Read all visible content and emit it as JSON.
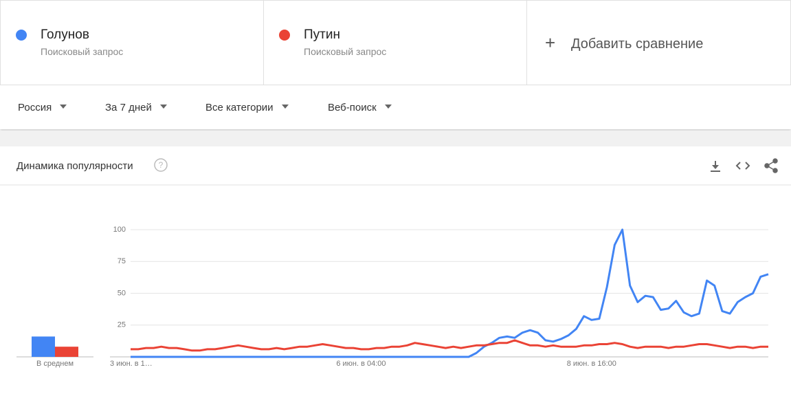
{
  "header": {
    "subtitles": [
      "Поисковый запрос",
      "Поисковый запрос"
    ],
    "add_compare": "Добавить сравнение"
  },
  "filters": [
    "Россия",
    "За 7 дней",
    "Все категории",
    "Веб-поиск"
  ],
  "card_title": "Динамика популярности",
  "chart_data": {
    "type": "line",
    "categories": [
      "3 июн. в 1…",
      null,
      null,
      null,
      null,
      null,
      null,
      null,
      null,
      null,
      null,
      null,
      null,
      null,
      null,
      null,
      null,
      null,
      null,
      null,
      null,
      null,
      null,
      null,
      null,
      null,
      null,
      null,
      null,
      null,
      "6 июн. в 04:00",
      null,
      null,
      null,
      null,
      null,
      null,
      null,
      null,
      null,
      null,
      null,
      null,
      null,
      null,
      null,
      null,
      null,
      null,
      null,
      null,
      null,
      null,
      null,
      null,
      null,
      null,
      null,
      null,
      null,
      "8 июн. в 16:00",
      null,
      null,
      null,
      null,
      null,
      null,
      null,
      null,
      null,
      null,
      null,
      null,
      null,
      null,
      null,
      null,
      null,
      null,
      null,
      null,
      null,
      null,
      null
    ],
    "series": [
      {
        "name": "Голунов",
        "color": "#4285f4",
        "values": [
          0,
          0,
          0,
          0,
          0,
          0,
          0,
          0,
          0,
          0,
          0,
          0,
          0,
          0,
          0,
          0,
          0,
          0,
          0,
          0,
          0,
          0,
          0,
          0,
          0,
          0,
          0,
          0,
          0,
          0,
          0,
          0,
          0,
          0,
          0,
          0,
          0,
          0,
          0,
          0,
          0,
          0,
          0,
          0,
          0,
          3,
          8,
          11,
          15,
          16,
          15,
          19,
          21,
          19,
          13,
          12,
          14,
          17,
          22,
          32,
          29,
          30,
          55,
          88,
          100,
          56,
          43,
          48,
          47,
          37,
          38,
          44,
          35,
          32,
          34,
          60,
          56,
          36,
          34,
          43,
          47,
          50,
          63,
          65
        ]
      },
      {
        "name": "Путин",
        "color": "#ea4335",
        "values": [
          6,
          6,
          7,
          7,
          8,
          7,
          7,
          6,
          5,
          5,
          6,
          6,
          7,
          8,
          9,
          8,
          7,
          6,
          6,
          7,
          6,
          7,
          8,
          8,
          9,
          10,
          9,
          8,
          7,
          7,
          6,
          6,
          7,
          7,
          8,
          8,
          9,
          11,
          10,
          9,
          8,
          7,
          8,
          7,
          8,
          9,
          9,
          10,
          11,
          11,
          13,
          11,
          9,
          9,
          8,
          9,
          8,
          8,
          8,
          9,
          9,
          10,
          10,
          11,
          10,
          8,
          7,
          8,
          8,
          8,
          7,
          8,
          8,
          9,
          10,
          10,
          9,
          8,
          7,
          8,
          8,
          7,
          8,
          8
        ]
      }
    ],
    "averages": {
      "label": "В среднем",
      "values": [
        16,
        8
      ]
    },
    "ylim": [
      0,
      100
    ],
    "yticks": [
      25,
      50,
      75,
      100
    ],
    "grid": true
  }
}
